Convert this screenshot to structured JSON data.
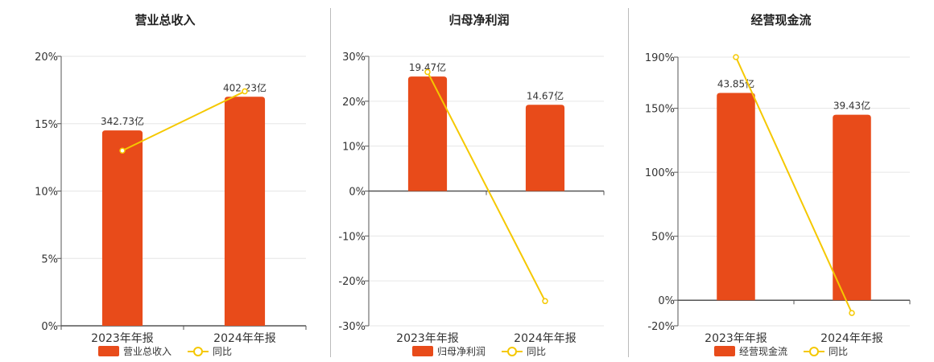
{
  "legend_line_label": "同比",
  "colors": {
    "bar": "#E84B1A",
    "line": "#F5C800",
    "axis": "#555555",
    "grid": "#e6e6e6"
  },
  "chart_data": [
    {
      "type": "bar",
      "title": "营业总收入",
      "bar_legend": "营业总收入",
      "categories": [
        "2023年年报",
        "2024年年报"
      ],
      "bar_labels": [
        "342.73亿",
        "402.23亿"
      ],
      "bar_values": [
        14.5,
        17.0
      ],
      "line_values": [
        13.0,
        17.4
      ],
      "ylim": [
        0,
        20
      ],
      "yticks": [
        0,
        5,
        10,
        15,
        20
      ],
      "ytick_labels": [
        "0%",
        "5%",
        "10%",
        "15%",
        "20%"
      ]
    },
    {
      "type": "bar",
      "title": "归母净利润",
      "bar_legend": "归母净利润",
      "categories": [
        "2023年年报",
        "2024年年报"
      ],
      "bar_labels": [
        "19.47亿",
        "14.67亿"
      ],
      "bar_values": [
        25.5,
        19.2
      ],
      "line_values": [
        26.5,
        -24.5
      ],
      "ylim": [
        -30,
        30
      ],
      "yticks": [
        -30,
        -20,
        -10,
        0,
        10,
        20,
        30
      ],
      "ytick_labels": [
        "-30%",
        "-20%",
        "-10%",
        "0%",
        "10%",
        "20%",
        "30%"
      ]
    },
    {
      "type": "bar",
      "title": "经营现金流",
      "bar_legend": "经营现金流",
      "categories": [
        "2023年年报",
        "2024年年报"
      ],
      "bar_labels": [
        "43.85亿",
        "39.43亿"
      ],
      "bar_values": [
        162,
        145
      ],
      "line_values": [
        190,
        -10
      ],
      "ylim": [
        -20,
        190
      ],
      "yticks": [
        -20,
        0,
        50,
        100,
        150,
        190
      ],
      "ytick_labels": [
        "-20%",
        "0%",
        "50%",
        "100%",
        "150%",
        "190%"
      ]
    }
  ]
}
